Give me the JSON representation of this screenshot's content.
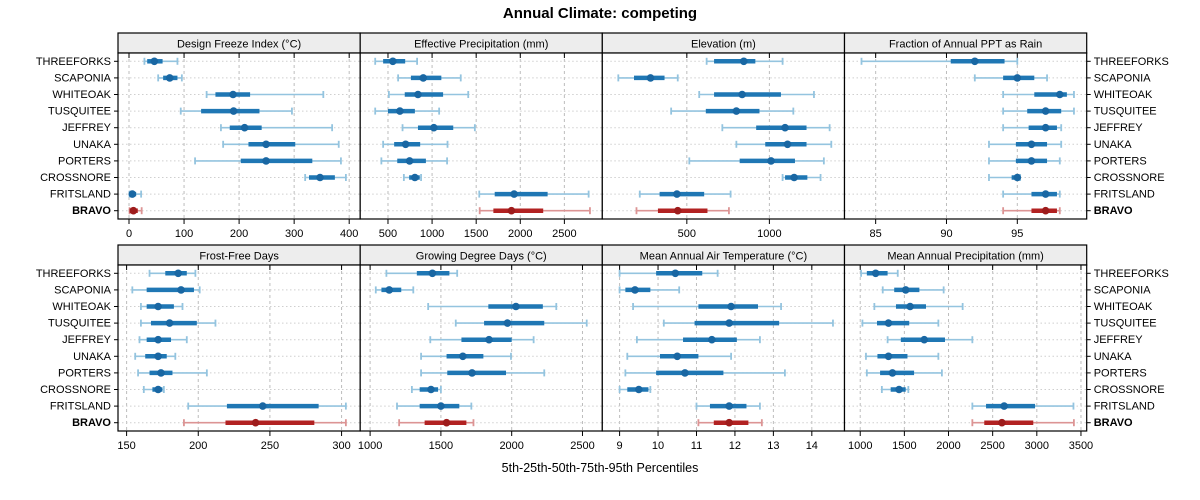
{
  "title": "Annual Climate: competing",
  "footer": "5th-25th-50th-75th-95th Percentiles",
  "highlight_site": "BRAVO",
  "colors": {
    "series_main": "#1f77b4",
    "series_light": "#94c4df",
    "series_dot": "#1967a3",
    "highlight_main": "#b22222",
    "highlight_light": "#dc9494",
    "highlight_dot": "#9e1c1c",
    "grid_vertical": "#bdbdbd",
    "grid_horizontal": "#cfcfcf",
    "strip_bg": "#ededed",
    "border": "#000000",
    "text": "#000000"
  },
  "chart_data": {
    "type": "multi-panel-errorbar",
    "note": "values per site are [p5, p25, p50, p75, p95] percentiles",
    "percentile_labels": [
      "5th",
      "25th",
      "50th",
      "75th",
      "95th"
    ],
    "sites": [
      "THREEFORKS",
      "SCAPONIA",
      "WHITEOAK",
      "TUSQUITEE",
      "JEFFREY",
      "UNAKA",
      "PORTERS",
      "CROSSNORE",
      "FRITSLAND",
      "BRAVO"
    ],
    "panels": [
      {
        "title": "Design Freeze Index (°C)",
        "ticks": [
          0,
          100,
          200,
          300,
          400
        ],
        "range": [
          -20,
          420
        ],
        "values": [
          [
            28,
            33,
            46,
            61,
            88
          ],
          [
            53,
            62,
            74,
            88,
            96
          ],
          [
            141,
            157,
            189,
            220,
            353
          ],
          [
            94,
            131,
            190,
            237,
            296
          ],
          [
            167,
            183,
            210,
            241,
            369
          ],
          [
            171,
            217,
            249,
            302,
            381
          ],
          [
            120,
            203,
            249,
            333,
            385
          ],
          [
            320,
            327,
            347,
            374,
            394
          ],
          [
            1,
            1,
            6,
            13,
            22
          ],
          [
            1,
            1,
            8,
            16,
            23
          ]
        ]
      },
      {
        "title": "Effective Precipitation (mm)",
        "ticks": [
          500,
          1000,
          1500,
          2000,
          2500
        ],
        "range": [
          185,
          2930
        ],
        "values": [
          [
            355,
            445,
            555,
            695,
            830
          ],
          [
            615,
            760,
            900,
            1105,
            1325
          ],
          [
            510,
            690,
            840,
            1125,
            1410
          ],
          [
            355,
            500,
            635,
            805,
            1080
          ],
          [
            665,
            840,
            1020,
            1240,
            1485
          ],
          [
            445,
            570,
            700,
            865,
            1175
          ],
          [
            425,
            605,
            745,
            930,
            1170
          ],
          [
            680,
            740,
            805,
            860,
            875
          ],
          [
            1535,
            1710,
            1930,
            2310,
            2775
          ],
          [
            1540,
            1695,
            1900,
            2260,
            2790
          ]
        ]
      },
      {
        "title": "Elevation (m)",
        "ticks": [
          500,
          1000
        ],
        "range": [
          -12,
          1455
        ],
        "values": [
          [
            620,
            665,
            845,
            915,
            1080
          ],
          [
            85,
            180,
            280,
            365,
            445
          ],
          [
            575,
            665,
            835,
            1070,
            1270
          ],
          [
            405,
            615,
            800,
            940,
            1145
          ],
          [
            715,
            920,
            1095,
            1225,
            1365
          ],
          [
            800,
            975,
            1110,
            1225,
            1375
          ],
          [
            515,
            820,
            1010,
            1155,
            1330
          ],
          [
            1080,
            1095,
            1150,
            1230,
            1310
          ],
          [
            215,
            335,
            440,
            605,
            765
          ],
          [
            195,
            325,
            445,
            625,
            755
          ]
        ]
      },
      {
        "title": "Fraction of Annual PPT as Rain",
        "ticks": [
          85,
          90,
          95
        ],
        "range": [
          82.8,
          99.9
        ],
        "values": [
          [
            84,
            90.3,
            92,
            94.1,
            95
          ],
          [
            92,
            94,
            95,
            96.2,
            97.1
          ],
          [
            94,
            96.2,
            98,
            98.5,
            99
          ],
          [
            94,
            95.7,
            97,
            98.1,
            99
          ],
          [
            94,
            95.8,
            97,
            97.8,
            98.1
          ],
          [
            93,
            94.9,
            96,
            97.1,
            98.1
          ],
          [
            93,
            94.9,
            96,
            97.1,
            98
          ],
          [
            93,
            94.6,
            95,
            95.1,
            95.2
          ],
          [
            94,
            96,
            97,
            97.8,
            98
          ],
          [
            94,
            96,
            97,
            97.8,
            98
          ]
        ]
      },
      {
        "title": "Frost-Free Days",
        "ticks": [
          150,
          200,
          250,
          300
        ],
        "range": [
          144,
          313
        ],
        "values": [
          [
            166,
            177,
            186,
            192,
            198
          ],
          [
            154,
            164,
            188,
            197,
            201
          ],
          [
            160,
            164,
            172,
            183,
            189
          ],
          [
            160,
            167,
            180,
            199,
            212
          ],
          [
            159,
            164,
            172,
            181,
            192
          ],
          [
            156,
            163,
            172,
            178,
            184
          ],
          [
            158,
            166,
            174,
            182,
            206
          ],
          [
            162,
            168,
            172,
            175,
            176
          ],
          [
            193,
            220,
            245,
            284,
            303
          ],
          [
            190,
            219,
            240,
            281,
            303
          ]
        ]
      },
      {
        "title": "Growing Degree Days (°C)",
        "ticks": [
          1000,
          1500,
          2000,
          2500
        ],
        "range": [
          930,
          2640
        ],
        "values": [
          [
            1115,
            1330,
            1440,
            1560,
            1615
          ],
          [
            1040,
            1080,
            1135,
            1220,
            1305
          ],
          [
            1410,
            1835,
            2030,
            2220,
            2315
          ],
          [
            1605,
            1805,
            1970,
            2230,
            2530
          ],
          [
            1425,
            1645,
            1840,
            2000,
            2155
          ],
          [
            1360,
            1540,
            1655,
            1800,
            1995
          ],
          [
            1360,
            1545,
            1720,
            1960,
            2230
          ],
          [
            1295,
            1350,
            1430,
            1480,
            1500
          ],
          [
            1190,
            1350,
            1500,
            1630,
            1715
          ],
          [
            1205,
            1385,
            1540,
            1680,
            1730
          ]
        ]
      },
      {
        "title": "Mean Annual Air Temperature (°C)",
        "ticks": [
          9,
          10,
          11,
          12,
          13,
          14
        ],
        "range": [
          8.55,
          14.85
        ],
        "values": [
          [
            9.0,
            9.95,
            10.45,
            11.15,
            11.55
          ],
          [
            9.0,
            9.15,
            9.4,
            9.8,
            10.55
          ],
          [
            9.35,
            11.05,
            11.9,
            12.6,
            13.2
          ],
          [
            10.15,
            10.95,
            11.85,
            13.15,
            14.55
          ],
          [
            9.45,
            10.65,
            11.4,
            12.05,
            12.65
          ],
          [
            9.2,
            10.05,
            10.5,
            11.05,
            11.9
          ],
          [
            9.15,
            9.95,
            10.7,
            11.7,
            13.3
          ],
          [
            9.0,
            9.2,
            9.5,
            9.75,
            9.8
          ],
          [
            11.0,
            11.35,
            11.85,
            12.3,
            12.65
          ],
          [
            11.05,
            11.45,
            11.85,
            12.35,
            12.7
          ]
        ]
      },
      {
        "title": "Mean Annual Precipitation (mm)",
        "ticks": [
          1000,
          1500,
          2000,
          2500,
          3000,
          3500
        ],
        "range": [
          822,
          3565
        ],
        "values": [
          [
            1010,
            1075,
            1175,
            1310,
            1425
          ],
          [
            1255,
            1385,
            1515,
            1670,
            1945
          ],
          [
            1160,
            1405,
            1565,
            1745,
            2160
          ],
          [
            1025,
            1190,
            1320,
            1555,
            1885
          ],
          [
            1310,
            1460,
            1725,
            1960,
            2270
          ],
          [
            1065,
            1195,
            1320,
            1535,
            1885
          ],
          [
            1075,
            1225,
            1365,
            1610,
            1925
          ],
          [
            1245,
            1345,
            1440,
            1515,
            1545
          ],
          [
            2270,
            2425,
            2630,
            2980,
            3415
          ],
          [
            2270,
            2405,
            2605,
            2960,
            3420
          ]
        ]
      }
    ]
  }
}
